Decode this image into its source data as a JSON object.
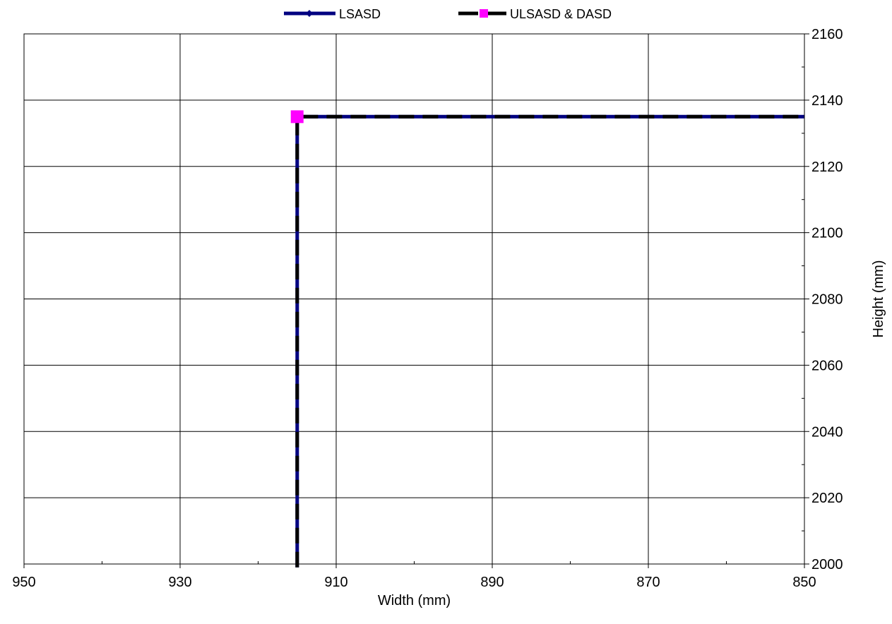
{
  "chart_data": {
    "type": "line",
    "xlabel": "Width (mm)",
    "ylabel": "Height (mm)",
    "xlim": [
      950,
      850
    ],
    "x_reversed": true,
    "ylim": [
      2000,
      2160
    ],
    "y_axis_side": "right",
    "x_major_ticks": [
      950,
      930,
      910,
      890,
      870,
      850
    ],
    "y_major_ticks": [
      2000,
      2020,
      2040,
      2060,
      2080,
      2100,
      2120,
      2140,
      2160
    ],
    "grid": true,
    "legend_position": "top",
    "series": [
      {
        "name": "LSASD",
        "color": "#000080",
        "line_style": "solid",
        "marker": "diamond",
        "points": [
          [
            915,
            1999
          ],
          [
            915,
            2135
          ],
          [
            850,
            2135
          ]
        ]
      },
      {
        "name": "ULSASD & DASD",
        "color": "#000000",
        "marker_color": "#FF00FF",
        "line_style": "dashed",
        "marker": "square",
        "points": [
          [
            915,
            1999
          ],
          [
            915,
            2135
          ],
          [
            850,
            2135
          ]
        ],
        "marker_points": [
          [
            915,
            2135
          ]
        ]
      }
    ]
  }
}
